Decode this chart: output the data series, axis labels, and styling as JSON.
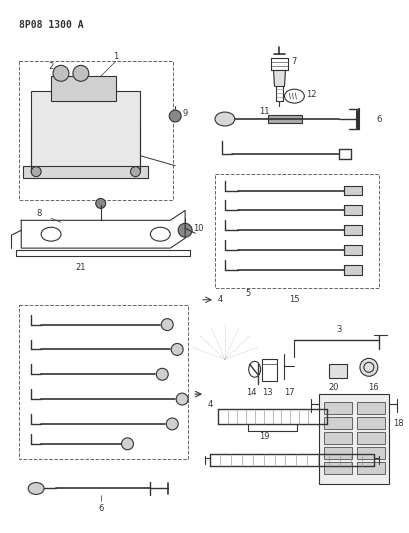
{
  "title": "8P08 1300 A",
  "bg_color": "#ffffff",
  "line_color": "#333333",
  "fig_width": 4.1,
  "fig_height": 5.33,
  "dpi": 100
}
